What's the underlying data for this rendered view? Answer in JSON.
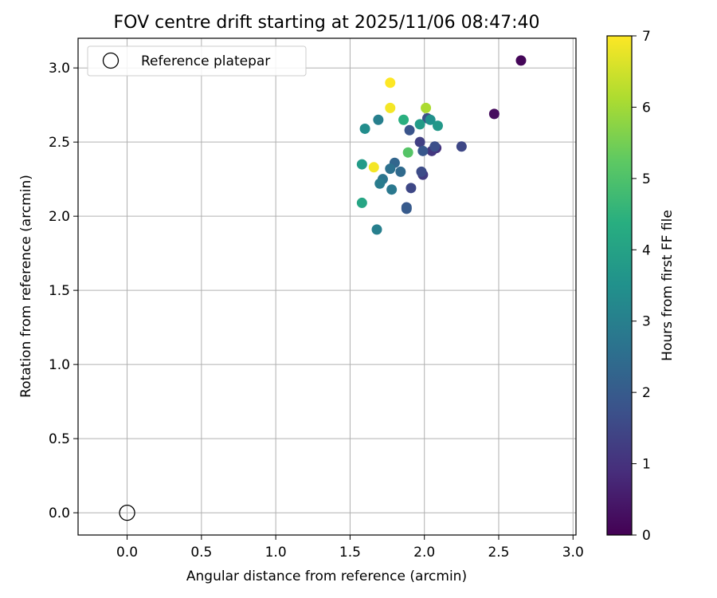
{
  "chart_data": {
    "type": "scatter",
    "title": "FOV centre drift starting at 2025/11/06 08:47:40",
    "xlabel": "Angular distance from reference (arcmin)",
    "ylabel": "Rotation from reference (arcmin)",
    "xlim": [
      -0.33,
      3.02
    ],
    "ylim": [
      -0.15,
      3.2
    ],
    "xticks": [
      0.0,
      0.5,
      1.0,
      1.5,
      2.0,
      2.5,
      3.0
    ],
    "xtick_labels": [
      "0.0",
      "0.5",
      "1.0",
      "1.5",
      "2.0",
      "2.5",
      "3.0"
    ],
    "yticks": [
      0.0,
      0.5,
      1.0,
      1.5,
      2.0,
      2.5,
      3.0
    ],
    "ytick_labels": [
      "0.0",
      "0.5",
      "1.0",
      "1.5",
      "2.0",
      "2.5",
      "3.0"
    ],
    "grid": true,
    "legend": {
      "position": "top-left",
      "entries": [
        "Reference platepar"
      ]
    },
    "reference": {
      "x": 0.0,
      "y": 0.0
    },
    "colorbar": {
      "label": "Hours from first FF file",
      "colormap": "viridis",
      "range": [
        0,
        7
      ],
      "ticks": [
        0,
        1,
        2,
        3,
        4,
        5,
        6,
        7
      ],
      "tick_labels": [
        "0",
        "1",
        "2",
        "3",
        "4",
        "5",
        "6",
        "7"
      ]
    },
    "series": [
      {
        "x": [
          2.65,
          2.47,
          2.08,
          2.05,
          1.97,
          1.99,
          2.25,
          2.07,
          1.91,
          1.98,
          1.99,
          1.9,
          2.02,
          1.88,
          1.88,
          1.84,
          1.8,
          1.77,
          1.72,
          1.7,
          1.78,
          1.68,
          1.69,
          1.6,
          2.04,
          2.09,
          1.97,
          1.58,
          1.58,
          1.89,
          1.86,
          2.01,
          1.66,
          1.77,
          1.77
        ],
        "y": [
          3.05,
          2.69,
          2.46,
          2.44,
          2.5,
          2.28,
          2.47,
          2.47,
          2.19,
          2.3,
          2.44,
          2.58,
          2.66,
          2.06,
          2.05,
          2.3,
          2.36,
          2.32,
          2.25,
          2.22,
          2.18,
          1.91,
          2.65,
          2.59,
          2.65,
          2.61,
          2.62,
          2.35,
          2.09,
          2.43,
          2.65,
          2.73,
          2.33,
          2.73,
          2.9
        ],
        "hours": [
          0.1,
          0.2,
          1.0,
          1.1,
          1.3,
          1.2,
          1.5,
          1.7,
          1.5,
          1.6,
          1.9,
          1.8,
          1.7,
          1.9,
          2.0,
          2.4,
          2.3,
          2.6,
          2.7,
          2.9,
          2.8,
          3.0,
          3.0,
          3.4,
          3.5,
          3.7,
          3.8,
          3.8,
          4.1,
          5.1,
          4.4,
          6.1,
          6.9,
          6.9,
          7.0
        ]
      }
    ]
  }
}
